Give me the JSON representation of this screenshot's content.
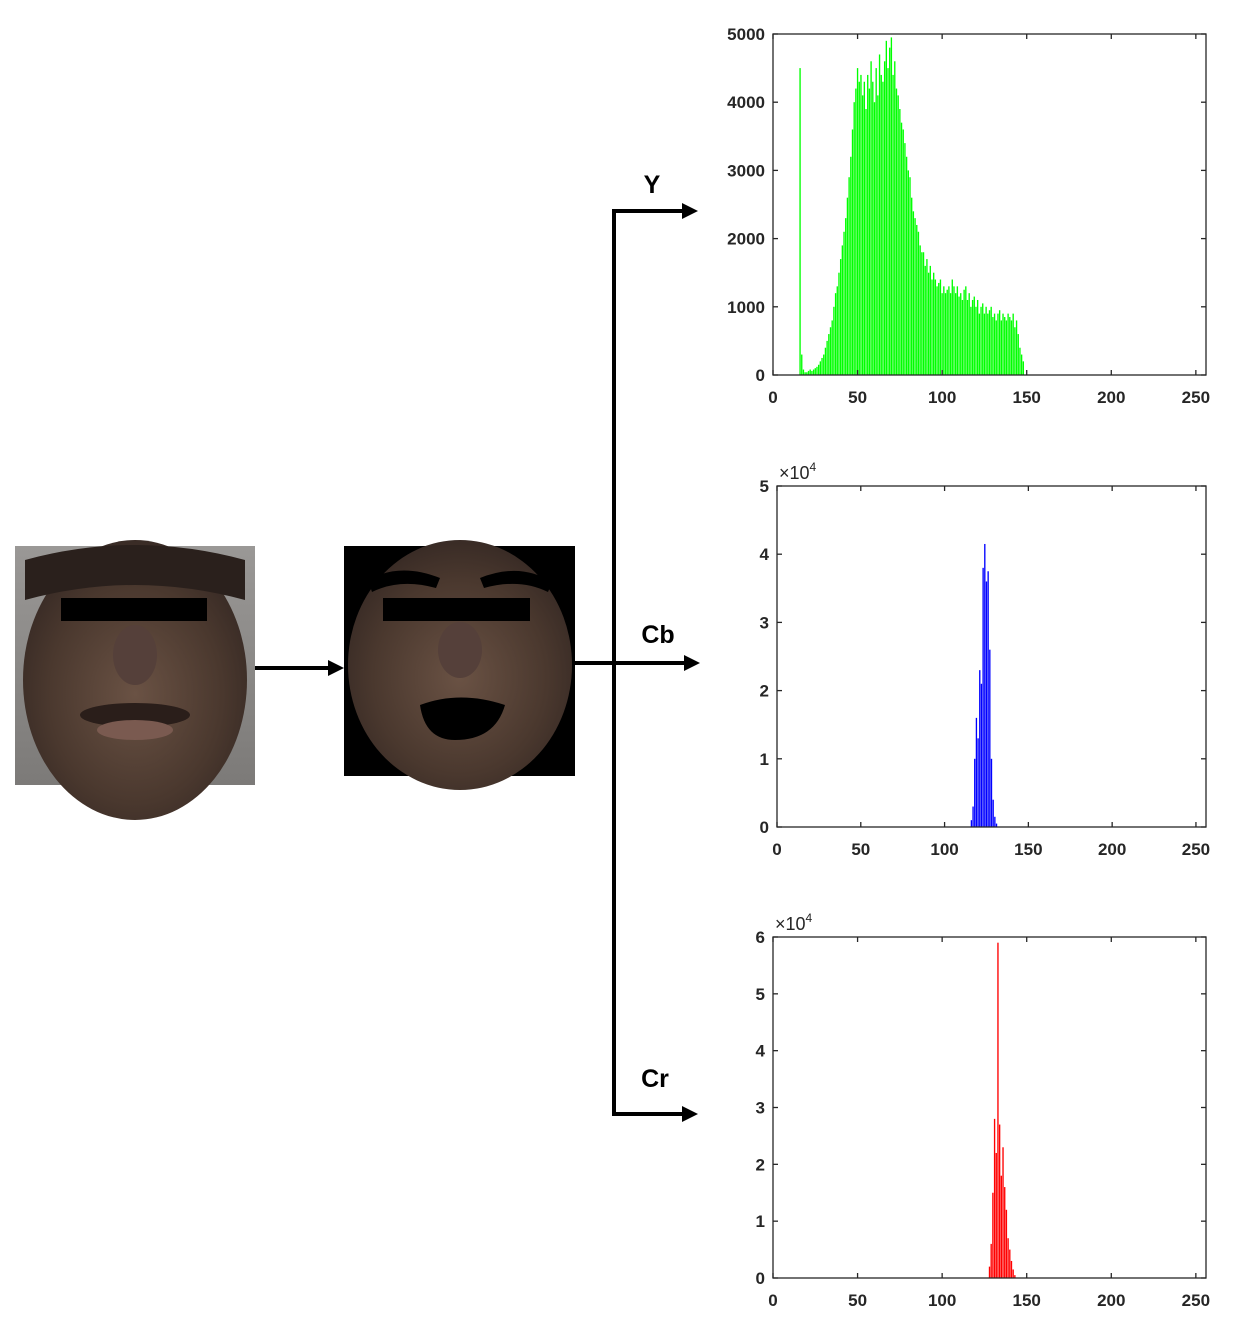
{
  "channels": [
    {
      "label": "Y",
      "color": "#00ff00",
      "chart_data": {
        "type": "bar",
        "x": [
          16,
          17,
          18,
          19,
          20,
          21,
          22,
          23,
          24,
          25,
          26,
          27,
          28,
          29,
          30,
          31,
          32,
          33,
          34,
          35,
          36,
          37,
          38,
          39,
          40,
          41,
          42,
          43,
          44,
          45,
          46,
          47,
          48,
          49,
          50,
          51,
          52,
          53,
          54,
          55,
          56,
          57,
          58,
          59,
          60,
          61,
          62,
          63,
          64,
          65,
          66,
          67,
          68,
          69,
          70,
          71,
          72,
          73,
          74,
          75,
          76,
          77,
          78,
          79,
          80,
          81,
          82,
          83,
          84,
          85,
          86,
          87,
          88,
          89,
          90,
          91,
          92,
          93,
          94,
          95,
          96,
          97,
          98,
          99,
          100,
          101,
          102,
          103,
          104,
          105,
          106,
          107,
          108,
          109,
          110,
          111,
          112,
          113,
          114,
          115,
          116,
          117,
          118,
          119,
          120,
          121,
          122,
          123,
          124,
          125,
          126,
          127,
          128,
          129,
          130,
          131,
          132,
          133,
          134,
          135,
          136,
          137,
          138,
          139,
          140,
          141,
          142,
          143,
          144,
          145,
          146,
          147,
          148
        ],
        "values": [
          4500,
          300,
          80,
          40,
          40,
          60,
          80,
          60,
          80,
          100,
          120,
          150,
          200,
          250,
          300,
          400,
          500,
          600,
          700,
          800,
          1000,
          1200,
          1300,
          1500,
          1700,
          1900,
          2100,
          2300,
          2600,
          2900,
          3200,
          3600,
          4000,
          4200,
          4500,
          4300,
          4400,
          4100,
          4300,
          3900,
          4400,
          4200,
          4600,
          4300,
          4000,
          4500,
          4100,
          4700,
          4400,
          4300,
          4600,
          4900,
          4500,
          4800,
          4950,
          4400,
          4600,
          4200,
          4100,
          3900,
          3700,
          3600,
          3400,
          3200,
          3000,
          2900,
          2600,
          2400,
          2300,
          2200,
          2100,
          1900,
          1800,
          1800,
          1600,
          1700,
          1500,
          1600,
          1400,
          1500,
          1400,
          1300,
          1350,
          1400,
          1200,
          1300,
          1200,
          1250,
          1300,
          1200,
          1400,
          1300,
          1200,
          1300,
          1150,
          1200,
          1100,
          1250,
          1300,
          1100,
          1200,
          1000,
          1100,
          1150,
          1000,
          1100,
          900,
          1000,
          1050,
          900,
          1000,
          900,
          950,
          1000,
          850,
          900,
          800,
          900,
          950,
          800,
          900,
          850,
          800,
          900,
          850,
          800,
          900,
          700,
          800,
          600,
          400,
          300,
          200
        ],
        "ylim": [
          0,
          5000
        ],
        "xlim": [
          0,
          256
        ],
        "yticks": [
          "0",
          "1000",
          "2000",
          "3000",
          "4000",
          "5000"
        ],
        "xticks": [
          "0",
          "50",
          "100",
          "150",
          "200",
          "250"
        ],
        "multiplier": ""
      }
    },
    {
      "label": "Cb",
      "color": "#0000ff",
      "chart_data": {
        "type": "bar",
        "x": [
          116,
          117,
          118,
          119,
          120,
          121,
          122,
          123,
          124,
          125,
          126,
          127,
          128,
          129,
          130,
          131
        ],
        "values": [
          0.1,
          0.3,
          1.0,
          1.6,
          1.3,
          2.3,
          2.1,
          3.8,
          4.15,
          3.6,
          3.75,
          2.6,
          1.0,
          0.4,
          0.15,
          0.05
        ],
        "ylim": [
          0,
          5
        ],
        "xlim": [
          0,
          256
        ],
        "yticks": [
          "0",
          "1",
          "2",
          "3",
          "4",
          "5"
        ],
        "xticks": [
          "0",
          "50",
          "100",
          "150",
          "200",
          "250"
        ],
        "multiplier": "×10",
        "multiplier_exp": "4"
      }
    },
    {
      "label": "Cr",
      "color": "#ff0000",
      "chart_data": {
        "type": "bar",
        "x": [
          128,
          129,
          130,
          131,
          132,
          133,
          134,
          135,
          136,
          137,
          138,
          139,
          140,
          141,
          142,
          143
        ],
        "values": [
          0.2,
          0.6,
          1.5,
          2.8,
          2.2,
          5.9,
          2.7,
          1.8,
          2.3,
          1.6,
          1.2,
          0.7,
          0.5,
          0.3,
          0.15,
          0.05
        ],
        "ylim": [
          0,
          6
        ],
        "xlim": [
          0,
          256
        ],
        "yticks": [
          "0",
          "1",
          "2",
          "3",
          "4",
          "5",
          "6"
        ],
        "xticks": [
          "0",
          "50",
          "100",
          "150",
          "200",
          "250"
        ],
        "multiplier": "×10",
        "multiplier_exp": "4"
      }
    }
  ],
  "colors": {
    "skin_dark": "#3e2e26",
    "skin_mid": "#5a4438",
    "background_gray": "#8c8a88",
    "mask_black": "#000000"
  }
}
